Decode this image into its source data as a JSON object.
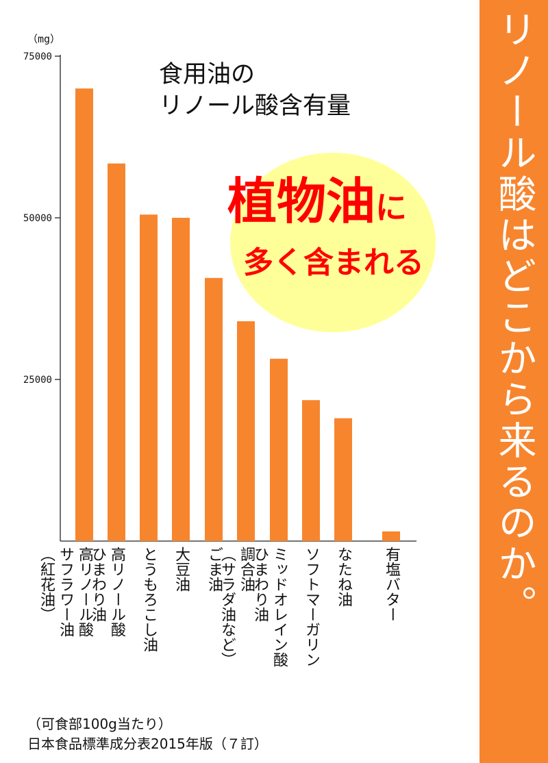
{
  "side_title": "リノール酸はどこから来るのか。",
  "colors": {
    "bar": "#f7852e",
    "banner": "#f7852e",
    "bubble": "#ffff99",
    "accent_text": "#ff0000"
  },
  "bubble": {
    "main": "植物油",
    "main_suffix": "に",
    "sub": "多く含まれる"
  },
  "notes": {
    "line1": "（可食部100g当たり）",
    "line2": "日本食品標準成分表2015年版（７訂）"
  },
  "chart_data": {
    "type": "bar",
    "title_lines": [
      "食用油の",
      "リノール酸含有量"
    ],
    "unit": "（mg）",
    "ylim": [
      0,
      75000
    ],
    "y_ticks": [
      25000,
      50000,
      75000
    ],
    "y_tick_labels": [
      "25000",
      "50000",
      "75000"
    ],
    "categories": [
      [
        "高リノール酸",
        "サフラワー油",
        "（紅花油）"
      ],
      [
        "高リノール酸",
        "ひまわり油"
      ],
      [
        "とうもろこし油"
      ],
      [
        "大豆油"
      ],
      [
        "ごま油"
      ],
      [
        "調合油",
        "（サラダ油など）"
      ],
      [
        "ミッドオレイン酸",
        "ひまわり油"
      ],
      [
        "ソフトマーガリン"
      ],
      [
        "なたね油"
      ],
      [
        "有塩バター"
      ]
    ],
    "values": [
      70000,
      58400,
      50500,
      50000,
      40700,
      34000,
      28200,
      21800,
      19000,
      1500
    ],
    "grid": false,
    "legend": "none"
  }
}
